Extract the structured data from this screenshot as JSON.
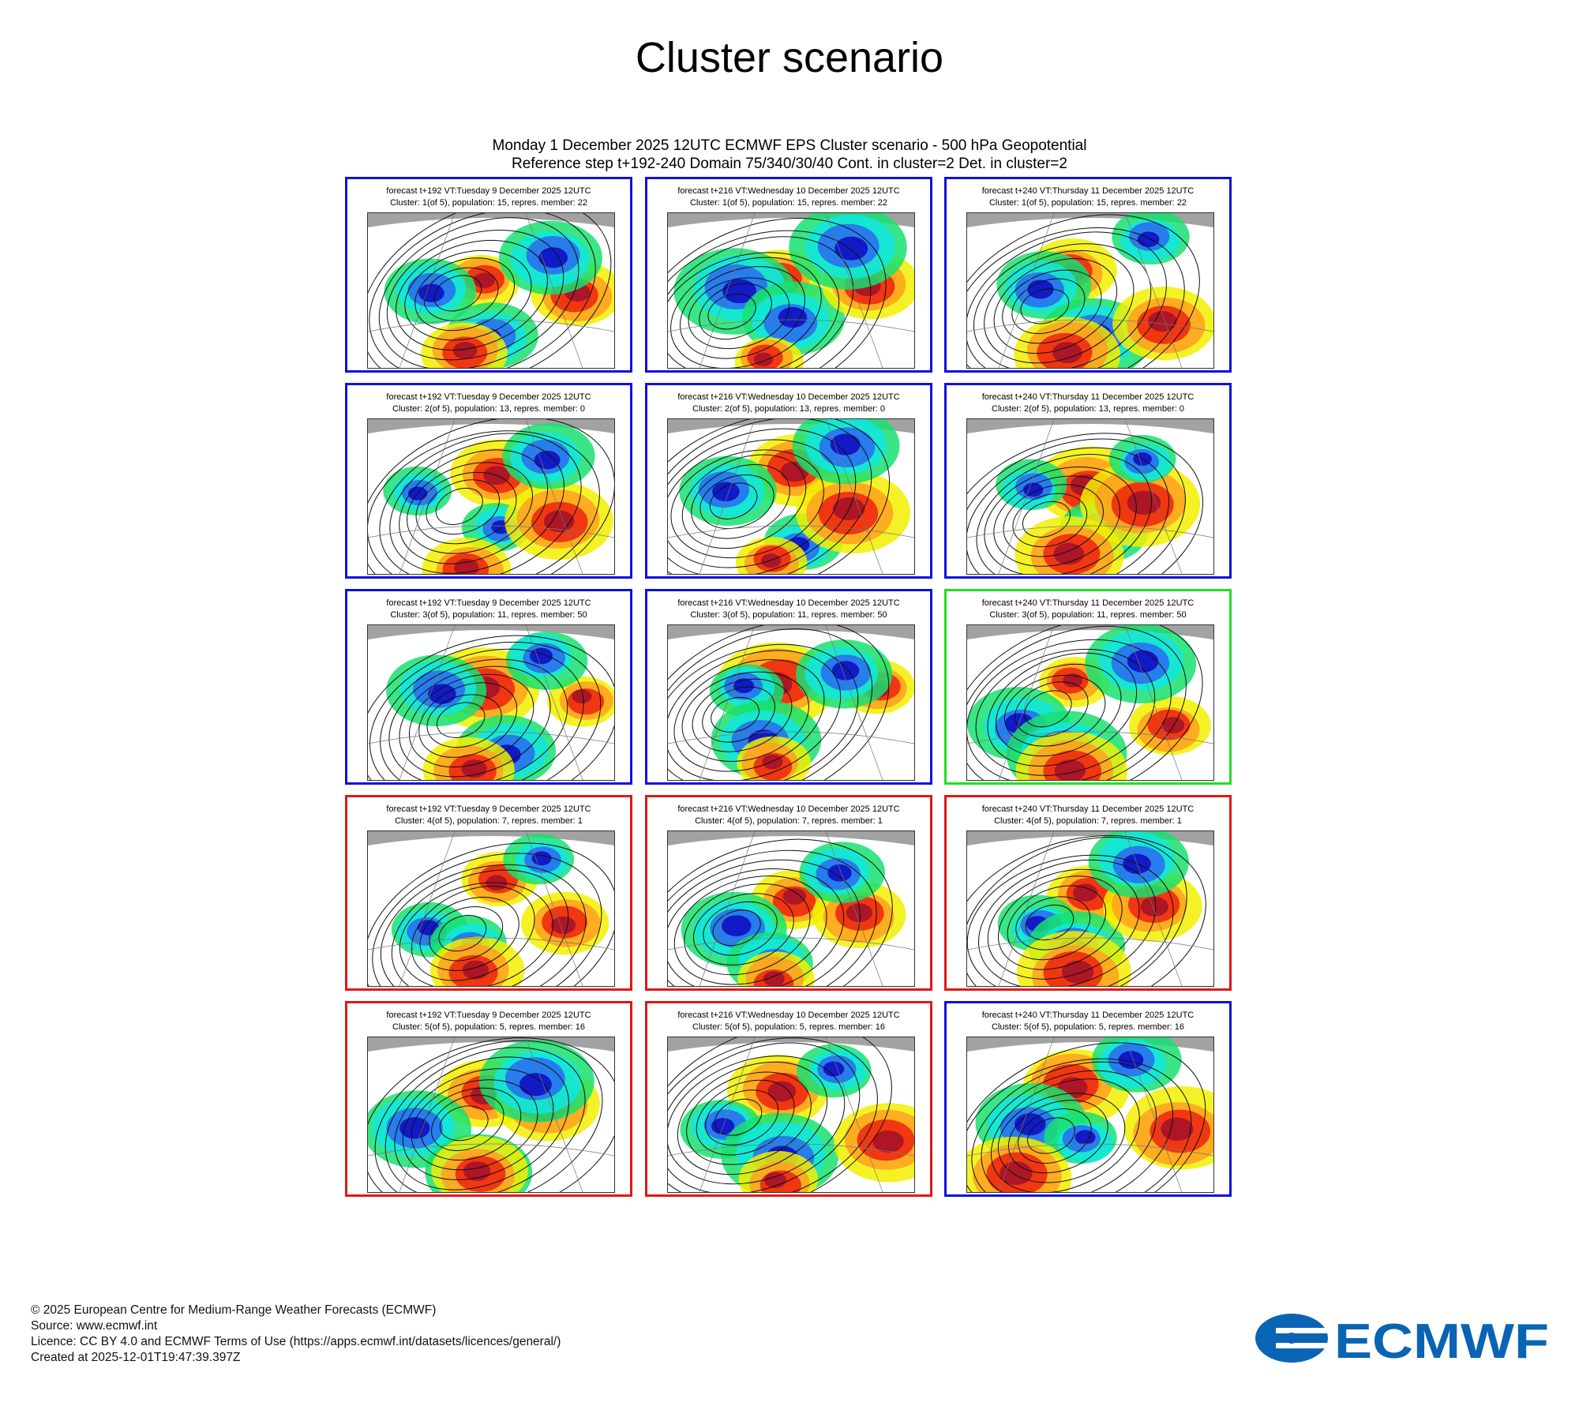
{
  "title": "Cluster scenario",
  "header": {
    "line1": "Monday 1 December 2025 12UTC ECMWF EPS Cluster scenario - 500 hPa Geopotential",
    "line2": "Reference step t+192-240 Domain 75/340/30/40 Cont. in cluster=2 Det. in cluster=2"
  },
  "colors": {
    "blue": "#1010e0",
    "green": "#22e022",
    "red": "#e01818",
    "ecmwf_brand": "#0a64b4"
  },
  "forecast_titles": [
    "forecast t+192 VT:Tuesday 9 December 2025 12UTC",
    "forecast t+216 VT:Wednesday 10 December 2025 12UTC",
    "forecast t+240 VT:Thursday 11 December 2025 12UTC"
  ],
  "clusters": [
    {
      "info": "Cluster: 1(of 5), population: 15, repres. member: 22",
      "frames": [
        "blue",
        "blue",
        "blue"
      ]
    },
    {
      "info": "Cluster: 2(of 5), population: 13, repres. member: 0",
      "frames": [
        "blue",
        "blue",
        "blue"
      ]
    },
    {
      "info": "Cluster: 3(of 5), population: 11, repres. member: 50",
      "frames": [
        "blue",
        "blue",
        "green"
      ]
    },
    {
      "info": "Cluster: 4(of 5), population: 7, repres. member: 1",
      "frames": [
        "red",
        "red",
        "red"
      ]
    },
    {
      "info": "Cluster: 5(of 5), population: 5, repres. member: 16",
      "frames": [
        "red",
        "red",
        "blue"
      ]
    }
  ],
  "footer": {
    "copyright": "© 2025 European Centre for Medium-Range Weather Forecasts (ECMWF)",
    "source": "Source: www.ecmwf.int",
    "licence": "Licence: CC BY 4.0 and ECMWF Terms of Use (https://apps.ecmwf.int/datasets/licences/general/)",
    "created": "Created at 2025-12-01T19:47:39.397Z"
  },
  "logo": {
    "text": "ECMWF",
    "icon": "ecmwf-logo-icon"
  }
}
